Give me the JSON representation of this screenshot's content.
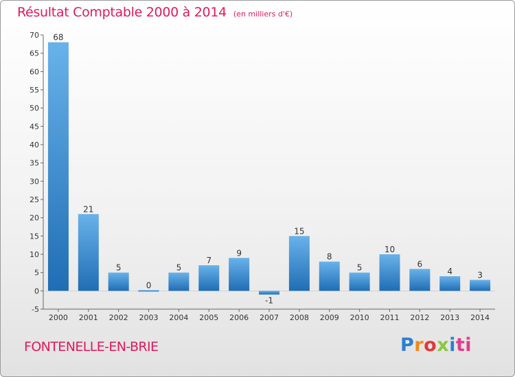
{
  "chart_data": {
    "type": "bar",
    "title": "Résultat Comptable 2000 à 2014",
    "subtitle": "(en milliers d'€)",
    "categories": [
      "2000",
      "2001",
      "2002",
      "2003",
      "2004",
      "2005",
      "2006",
      "2007",
      "2008",
      "2009",
      "2010",
      "2011",
      "2012",
      "2013",
      "2014"
    ],
    "values": [
      68,
      21,
      5,
      0,
      5,
      7,
      9,
      -1,
      15,
      8,
      5,
      10,
      6,
      4,
      3
    ],
    "ylim": [
      -5,
      70
    ],
    "yticks": [
      -5,
      0,
      5,
      10,
      15,
      20,
      25,
      30,
      35,
      40,
      45,
      50,
      55,
      60,
      65,
      70
    ],
    "xlabel": "",
    "ylabel": "",
    "grid": false,
    "bar_color": "#3f8fd2"
  },
  "footer": {
    "commune": "FONTENELLE-EN-BRIE",
    "logo": {
      "parts": [
        "P",
        "r",
        "o",
        "x",
        "i",
        "ti"
      ]
    }
  },
  "colors": {
    "title": "#e0195a",
    "bar_top": "#69b2ea",
    "bar_bottom": "#1f6db4"
  }
}
